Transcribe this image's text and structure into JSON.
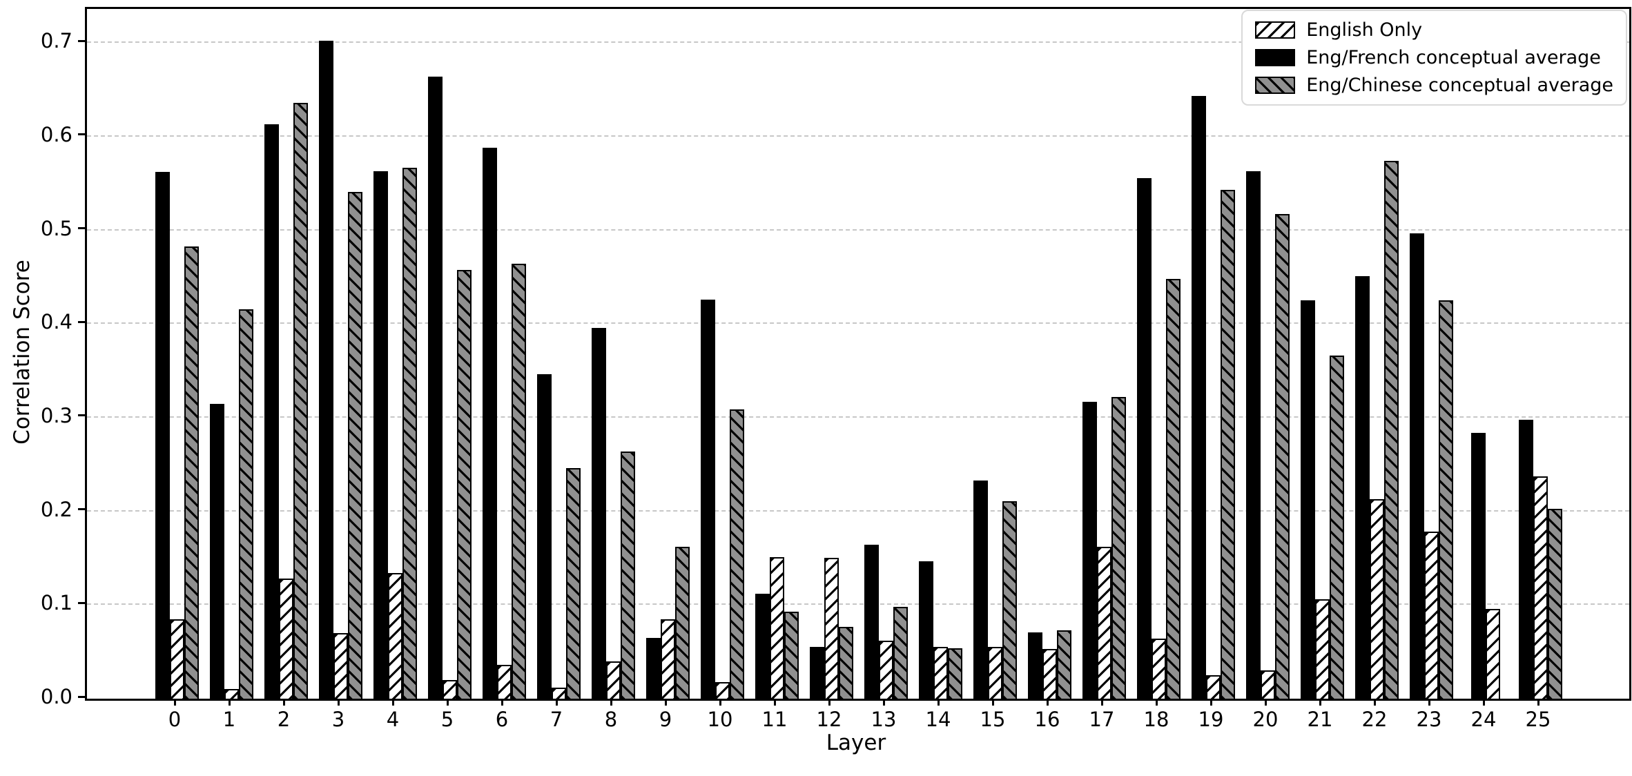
{
  "chart_data": {
    "type": "bar",
    "title": "",
    "xlabel": "Layer",
    "ylabel": "Correlation Score",
    "categories": [
      "0",
      "1",
      "2",
      "3",
      "4",
      "5",
      "6",
      "7",
      "8",
      "9",
      "10",
      "11",
      "12",
      "13",
      "14",
      "15",
      "16",
      "17",
      "18",
      "19",
      "20",
      "21",
      "22",
      "23",
      "24",
      "25"
    ],
    "series": [
      {
        "name": "English Only",
        "style": "white-forward-hatch",
        "values": [
          0.085,
          0.01,
          0.128,
          0.07,
          0.134,
          0.02,
          0.036,
          0.012,
          0.04,
          0.085,
          0.018,
          0.151,
          0.15,
          0.062,
          0.055,
          0.055,
          0.053,
          0.162,
          0.064,
          0.025,
          0.03,
          0.106,
          0.213,
          0.178,
          0.096,
          0.237
        ]
      },
      {
        "name": "Eng/French conceptual average",
        "style": "solid-black",
        "values": [
          0.562,
          0.315,
          0.613,
          0.702,
          0.563,
          0.664,
          0.588,
          0.346,
          0.396,
          0.065,
          0.426,
          0.112,
          0.055,
          0.164,
          0.147,
          0.233,
          0.071,
          0.317,
          0.556,
          0.643,
          0.563,
          0.425,
          0.451,
          0.497,
          0.284,
          0.298
        ]
      },
      {
        "name": "Eng/Chinese conceptual average",
        "style": "gray-back-hatch",
        "values": [
          0.483,
          0.416,
          0.636,
          0.541,
          0.567,
          0.458,
          0.464,
          0.246,
          0.264,
          0.162,
          0.309,
          0.093,
          0.077,
          0.098,
          0.054,
          0.211,
          0.073,
          0.322,
          0.448,
          0.543,
          0.517,
          0.366,
          0.574,
          0.425,
          null,
          0.203
        ]
      }
    ],
    "bar_draw_order_in_group": [
      "Eng/French conceptual average",
      "English Only",
      "Eng/Chinese conceptual average"
    ],
    "yticks": [
      0.0,
      0.1,
      0.2,
      0.3,
      0.4,
      0.5,
      0.6,
      0.7
    ],
    "ylim": [
      0,
      0.736
    ],
    "grid": "horizontal-dashed",
    "legend_position": "upper-right"
  },
  "colors": {
    "bar_black": "#000000",
    "bar_gray": "#909090",
    "bar_white": "#ffffff",
    "bar_edge": "#000000",
    "hatch": "#000000",
    "gridline": "#c7c7c7",
    "axis": "#000000",
    "background": "#ffffff"
  }
}
